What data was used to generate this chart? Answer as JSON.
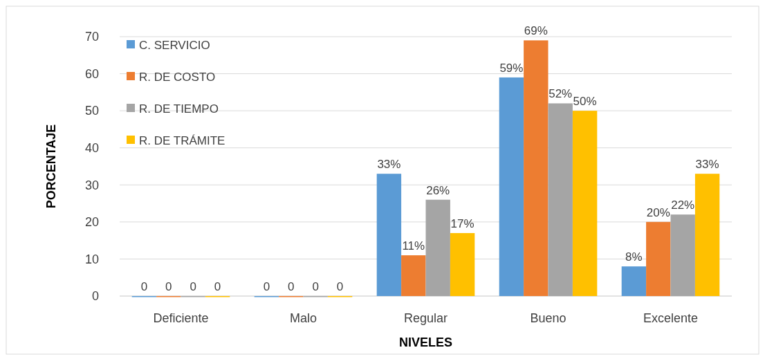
{
  "chart_data": {
    "type": "bar",
    "xlabel": "NIVELES",
    "ylabel": "PORCENTAJE",
    "categories": [
      "Deficiente",
      "Malo",
      "Regular",
      "Bueno",
      "Excelente"
    ],
    "series": [
      {
        "name": "C. SERVICIO",
        "color": "#5b9bd5",
        "values": [
          0,
          0,
          33,
          59,
          8
        ],
        "value_labels": [
          "0",
          "0",
          "33%",
          "59%",
          "8%"
        ]
      },
      {
        "name": "R. DE COSTO",
        "color": "#ed7d31",
        "values": [
          0,
          0,
          11,
          69,
          20
        ],
        "value_labels": [
          "0",
          "0",
          "11%",
          "69%",
          "20%"
        ]
      },
      {
        "name": "R. DE TIEMPO",
        "color": "#a5a5a5",
        "values": [
          0,
          0,
          26,
          52,
          22
        ],
        "value_labels": [
          "0",
          "0",
          "26%",
          "52%",
          "22%"
        ]
      },
      {
        "name": "R. DE TRÁMITE",
        "color": "#ffc000",
        "values": [
          0,
          0,
          17,
          50,
          33
        ],
        "value_labels": [
          "0",
          "0",
          "17%",
          "50%",
          "33%"
        ]
      }
    ],
    "ylim": [
      0,
      70
    ],
    "yticks": [
      0,
      10,
      20,
      30,
      40,
      50,
      60,
      70
    ],
    "grid": "y",
    "legend": "top left"
  }
}
